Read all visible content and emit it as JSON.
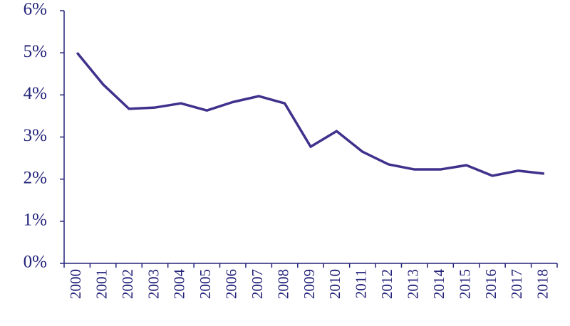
{
  "chart_data": {
    "type": "line",
    "categories": [
      "2000",
      "2001",
      "2002",
      "2003",
      "2004",
      "2005",
      "2006",
      "2007",
      "2008",
      "2009",
      "2010",
      "2011",
      "2012",
      "2013",
      "2014",
      "2015",
      "2016",
      "2017",
      "2018"
    ],
    "values": [
      5.0,
      4.25,
      3.67,
      3.7,
      3.8,
      3.63,
      3.83,
      3.97,
      3.8,
      2.77,
      3.14,
      2.65,
      2.35,
      2.23,
      2.23,
      2.33,
      2.08,
      2.2,
      2.13
    ],
    "color": "#3f318c",
    "ylim": [
      0,
      6
    ],
    "yticks": [
      {
        "value": 0,
        "label": "0%"
      },
      {
        "value": 1,
        "label": "1%"
      },
      {
        "value": 2,
        "label": "2%"
      },
      {
        "value": 3,
        "label": "3%"
      },
      {
        "value": 4,
        "label": "4%"
      },
      {
        "value": 5,
        "label": "5%"
      },
      {
        "value": 6,
        "label": "6%"
      }
    ],
    "grid": false
  }
}
